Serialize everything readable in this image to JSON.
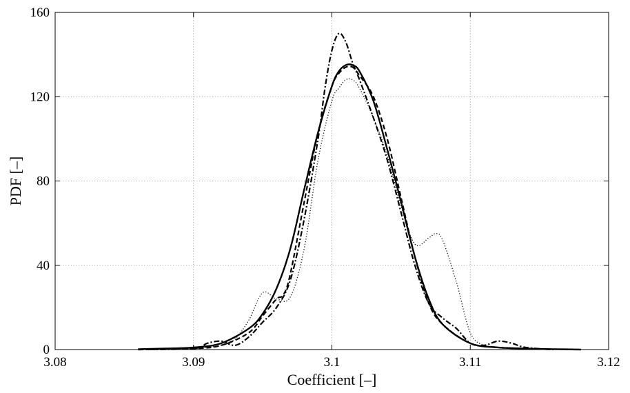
{
  "chart_data": {
    "type": "line",
    "title": "",
    "xlabel": "Coefficient [–]",
    "ylabel": "PDF [–]",
    "xlim": [
      3.08,
      3.12
    ],
    "ylim": [
      0,
      160
    ],
    "xticks": [
      3.08,
      3.09,
      3.1,
      3.11,
      3.12
    ],
    "yticks": [
      0,
      40,
      80,
      120,
      160
    ],
    "xtick_labels": [
      "3.08",
      "3.09",
      "3.1",
      "3.11",
      "3.12"
    ],
    "ytick_labels": [
      "0",
      "40",
      "80",
      "120",
      "160"
    ],
    "grid": true,
    "legend": "none",
    "series": [
      {
        "style": "solid",
        "color": "#000000",
        "x": [
          3.086,
          3.088,
          3.09,
          3.092,
          3.094,
          3.095,
          3.096,
          3.097,
          3.098,
          3.099,
          3.1,
          3.1005,
          3.101,
          3.1015,
          3.102,
          3.103,
          3.104,
          3.105,
          3.106,
          3.107,
          3.108,
          3.11,
          3.112,
          3.114,
          3.116,
          3.118
        ],
        "y": [
          0.2,
          0.5,
          1,
          3,
          10,
          17,
          29,
          48,
          76,
          103,
          125,
          132,
          135,
          135,
          132,
          118,
          95,
          70,
          44,
          24,
          12,
          3,
          1,
          0.5,
          0.2,
          0
        ]
      },
      {
        "style": "dashed",
        "color": "#000000",
        "x": [
          3.086,
          3.09,
          3.092,
          3.094,
          3.095,
          3.096,
          3.0965,
          3.097,
          3.098,
          3.099,
          3.1,
          3.1005,
          3.101,
          3.1015,
          3.102,
          3.103,
          3.104,
          3.105,
          3.106,
          3.107,
          3.108,
          3.11,
          3.112,
          3.114,
          3.116
        ],
        "y": [
          0,
          0.5,
          2,
          8,
          16,
          24,
          26,
          36,
          70,
          103,
          125,
          131,
          134,
          134,
          130,
          120,
          100,
          72,
          44,
          22,
          12,
          3,
          1,
          0.5,
          0
        ]
      },
      {
        "style": "dashdot",
        "color": "#000000",
        "x": [
          3.086,
          3.09,
          3.091,
          3.092,
          3.093,
          3.094,
          3.095,
          3.096,
          3.097,
          3.098,
          3.099,
          3.0995,
          3.1,
          3.1005,
          3.101,
          3.1015,
          3.102,
          3.103,
          3.104,
          3.105,
          3.106,
          3.107,
          3.108,
          3.109,
          3.11,
          3.111,
          3.112,
          3.113,
          3.114,
          3.116
        ],
        "y": [
          0,
          0.5,
          3,
          4,
          2,
          6,
          13,
          20,
          33,
          62,
          100,
          124,
          142,
          150,
          146,
          136,
          128,
          110,
          90,
          65,
          40,
          22,
          15,
          10,
          3,
          2,
          4,
          3,
          1,
          0
        ]
      },
      {
        "style": "dotted",
        "color": "#000000",
        "x": [
          3.088,
          3.09,
          3.092,
          3.093,
          3.094,
          3.095,
          3.096,
          3.097,
          3.098,
          3.099,
          3.1,
          3.1005,
          3.101,
          3.1015,
          3.102,
          3.103,
          3.104,
          3.105,
          3.106,
          3.107,
          3.1075,
          3.108,
          3.109,
          3.11,
          3.111,
          3.112,
          3.113,
          3.114
        ],
        "y": [
          0,
          0.5,
          2,
          5,
          14,
          27,
          24,
          25,
          48,
          90,
          118,
          124,
          128,
          128,
          124,
          110,
          92,
          68,
          50,
          53,
          55,
          52,
          32,
          8,
          2,
          1,
          0.5,
          0
        ]
      }
    ]
  }
}
